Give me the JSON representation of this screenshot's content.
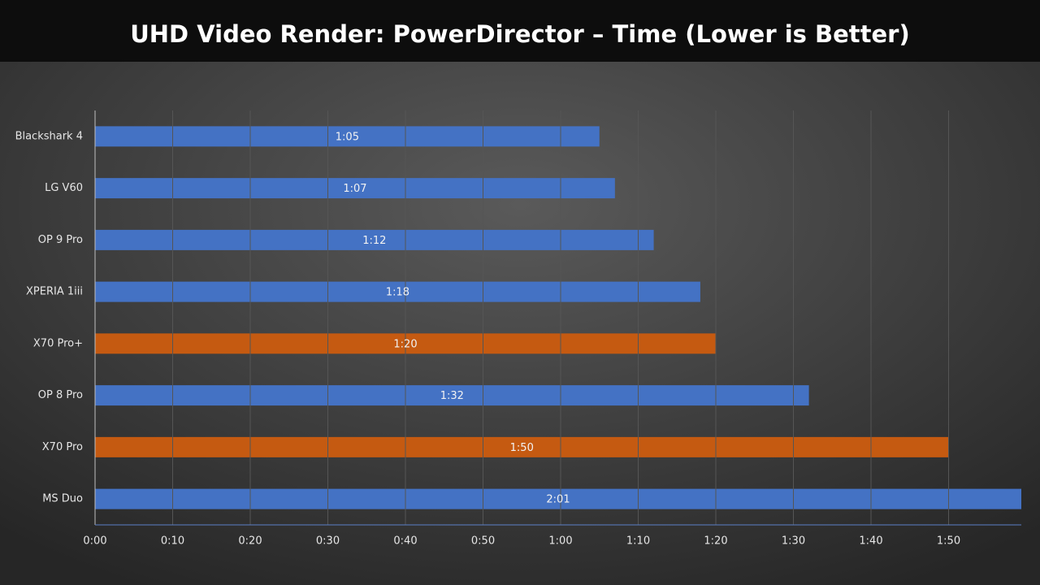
{
  "chart_data": {
    "type": "hbar",
    "title": "UHD Video Render: PowerDirector – Time (Lower is Better)",
    "categories": [
      "Blackshark 4",
      "LG V60",
      "OP 9 Pro",
      "XPERIA 1iii",
      "X70 Pro+",
      "OP 8 Pro",
      "X70 Pro",
      "MS Duo"
    ],
    "values": [
      65,
      67,
      72,
      78,
      80,
      92,
      110,
      121
    ],
    "value_labels": [
      "1:05",
      "1:07",
      "1:12",
      "1:18",
      "1:20",
      "1:32",
      "1:50",
      "2:01"
    ],
    "colors": [
      "#4472c4",
      "#4472c4",
      "#4472c4",
      "#4472c4",
      "#c55a11",
      "#4472c4",
      "#c55a11",
      "#4472c4"
    ],
    "xlim": [
      0,
      120
    ],
    "xticks": [
      {
        "value": 0,
        "label": "0:00"
      },
      {
        "value": 10,
        "label": "0:10"
      },
      {
        "value": 20,
        "label": "0:20"
      },
      {
        "value": 30,
        "label": "0:30"
      },
      {
        "value": 40,
        "label": "0:40"
      },
      {
        "value": 50,
        "label": "0:50"
      },
      {
        "value": 60,
        "label": "1:00"
      },
      {
        "value": 70,
        "label": "1:10"
      },
      {
        "value": 80,
        "label": "1:20"
      },
      {
        "value": 90,
        "label": "1:30"
      },
      {
        "value": 100,
        "label": "1:40"
      },
      {
        "value": 110,
        "label": "1:50"
      }
    ],
    "grid": true
  }
}
